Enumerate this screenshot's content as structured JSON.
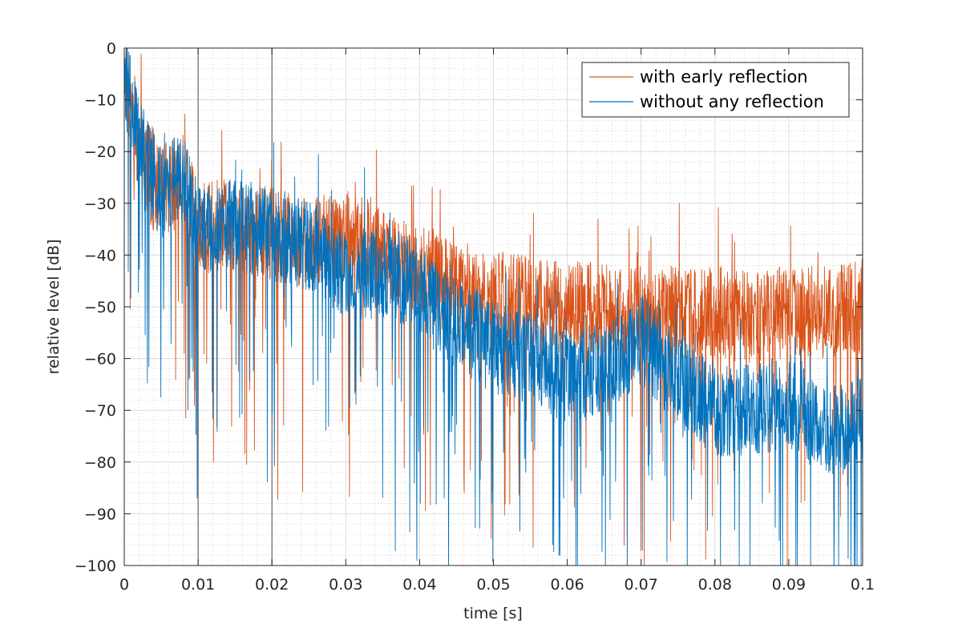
{
  "chart_data": {
    "type": "line",
    "xlabel": "time [s]",
    "ylabel": "relative level [dB]",
    "xlim": [
      0,
      0.1
    ],
    "ylim": [
      -100,
      0
    ],
    "xticks": [
      0,
      0.01,
      0.02,
      0.03,
      0.04,
      0.05,
      0.06,
      0.07,
      0.08,
      0.09,
      0.1
    ],
    "xtick_labels": [
      "0",
      "0.01",
      "0.02",
      "0.03",
      "0.04",
      "0.05",
      "0.06",
      "0.07",
      "0.08",
      "0.09",
      "0.1"
    ],
    "yticks": [
      0,
      -10,
      -20,
      -30,
      -40,
      -50,
      -60,
      -70,
      -80,
      -90,
      -100
    ],
    "ytick_labels": [
      "0",
      "−10",
      "−20",
      "−30",
      "−40",
      "−50",
      "−60",
      "−70",
      "−80",
      "−90",
      "−100"
    ],
    "grid": true,
    "minor_grid": true,
    "vertical_markers": [
      0.01,
      0.02
    ],
    "legend_position": "top-right",
    "series": [
      {
        "name": "with early reflection",
        "color": "#D95319",
        "envelope": {
          "x": [
            0,
            0.002,
            0.005,
            0.008,
            0.01,
            0.015,
            0.02,
            0.025,
            0.03,
            0.035,
            0.04,
            0.045,
            0.05,
            0.055,
            0.06,
            0.065,
            0.07,
            0.075,
            0.08,
            0.085,
            0.09,
            0.095,
            0.1
          ],
          "y": [
            -3,
            -20,
            -28,
            -25,
            -35,
            -34,
            -36,
            -38,
            -36,
            -40,
            -43,
            -47,
            -48,
            -49,
            -50,
            -50,
            -51,
            -51,
            -51,
            -52,
            -51,
            -51,
            -50
          ]
        }
      },
      {
        "name": "without any reflection",
        "color": "#0072BD",
        "envelope": {
          "x": [
            0,
            0.002,
            0.005,
            0.008,
            0.01,
            0.015,
            0.02,
            0.025,
            0.03,
            0.035,
            0.04,
            0.045,
            0.05,
            0.055,
            0.06,
            0.065,
            0.07,
            0.075,
            0.08,
            0.085,
            0.09,
            0.095,
            0.1
          ],
          "y": [
            -3,
            -20,
            -28,
            -25,
            -35,
            -34,
            -36,
            -38,
            -44,
            -43,
            -46,
            -53,
            -58,
            -60,
            -64,
            -62,
            -56,
            -64,
            -70,
            -70,
            -68,
            -75,
            -72
          ]
        }
      }
    ]
  }
}
